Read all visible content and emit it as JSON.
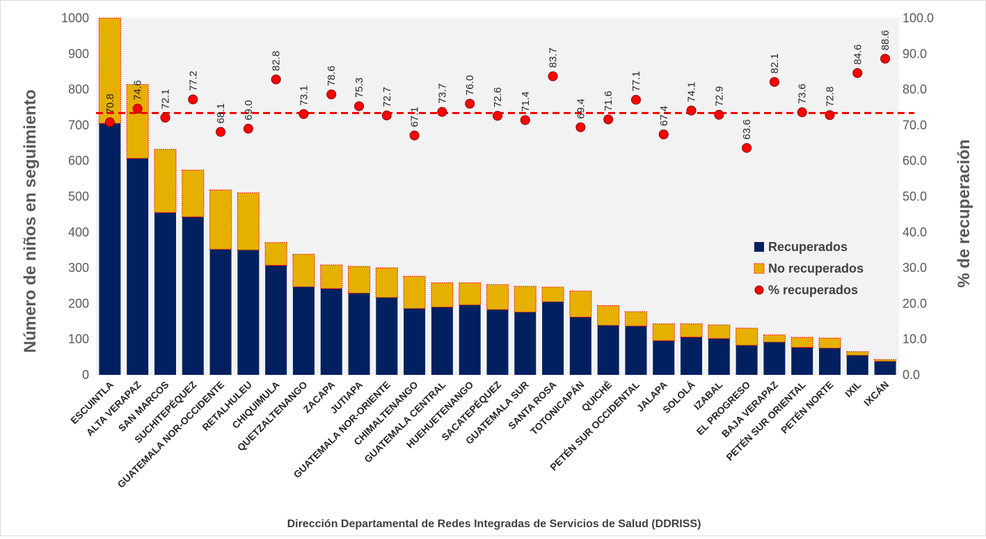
{
  "chart_data": {
    "type": "bar",
    "stacked": true,
    "xlabel": "Dirección Departamental  de Redes Integradas  de Servicios de Salud (DDRISS)",
    "ylabel": "Número de niños en seguimiento",
    "y2label": "% de recuperación",
    "ylim": [
      0,
      1000
    ],
    "y2lim": [
      0,
      100
    ],
    "yticks": [
      "0",
      "100",
      "200",
      "300",
      "400",
      "500",
      "600",
      "700",
      "800",
      "900",
      "1000"
    ],
    "y2ticks": [
      "0.0",
      "10.0",
      "20.0",
      "30.0",
      "40.0",
      "50.0",
      "60.0",
      "70.0",
      "80.0",
      "90.0",
      "100.0"
    ],
    "categories": [
      "ESCUINTLA",
      "ALTA VERAPAZ",
      "SAN MARCOS",
      "SUCHITEPÉQUEZ",
      "GUATEMALA NOR-OCCIDENTE",
      "RETALHULEU",
      "CHIQUIMULA",
      "QUETZALTENANGO",
      "ZACAPA",
      "JUTIAPA",
      "GUATEMALA NOR-ORIENTE",
      "CHIMALTENANGO",
      "GUATEMALA CENTRAL",
      "HUEHUETENANGO",
      "SACATEPÉQUEZ",
      "GUATEMALA SUR",
      "SANTA ROSA",
      "TOTONICAPÁN",
      "QUICHÉ",
      "PETÉN SUR OCCIDENTAL",
      "JALAPA",
      "SOLOLÁ",
      "IZABAL",
      "EL PROGRESO",
      "BAJA VERAPAZ",
      "PETÉN SUR ORIENTAL",
      "PETÉN NORTE",
      "IXIL",
      "IXCÁN"
    ],
    "series": [
      {
        "name": "Recuperados",
        "color": "#002060",
        "values": [
          705,
          607,
          455,
          443,
          352,
          350,
          307,
          247,
          242,
          229,
          217,
          186,
          190,
          196,
          183,
          176,
          205,
          162,
          139,
          137,
          96,
          106,
          102,
          83,
          92,
          77,
          75,
          55,
          38
        ]
      },
      {
        "name": "No recuperados",
        "color": "#E6B000",
        "values": [
          295,
          207,
          177,
          131,
          166,
          160,
          64,
          91,
          66,
          75,
          83,
          90,
          68,
          62,
          70,
          72,
          41,
          73,
          55,
          40,
          47,
          37,
          38,
          48,
          20,
          28,
          28,
          10,
          5
        ]
      },
      {
        "name": "% recuperados",
        "type": "scatter",
        "axis": "right",
        "color": "#FF0000",
        "values": [
          70.8,
          74.6,
          72.1,
          77.2,
          68.1,
          69.0,
          82.8,
          73.1,
          78.6,
          75.3,
          72.7,
          67.1,
          73.7,
          76.0,
          72.6,
          71.4,
          83.7,
          69.4,
          71.6,
          77.1,
          67.4,
          74.1,
          72.9,
          63.6,
          82.1,
          73.6,
          72.8,
          84.6,
          88.6
        ]
      }
    ],
    "data_labels": [
      "70.8",
      "74.6",
      "72.1",
      "77.2",
      "68.1",
      "69.0",
      "82.8",
      "73.1",
      "78.6",
      "75.3",
      "72.7",
      "67.1",
      "73.7",
      "76.0",
      "72.6",
      "71.4",
      "83.7",
      "69.4",
      "71.6",
      "77.1",
      "67.4",
      "74.1",
      "72.9",
      "63.6",
      "82.1",
      "73.6",
      "72.8",
      "84.6",
      "88.6"
    ],
    "reference_line": {
      "axis": "right",
      "value": 73.4,
      "style": "dashed",
      "color": "#FF0000"
    },
    "legend": {
      "position": "center-right",
      "entries": [
        "Recuperados",
        "No recuperados",
        "% recuperados"
      ]
    },
    "plot_background": "#F2F2F2",
    "grid": false
  }
}
